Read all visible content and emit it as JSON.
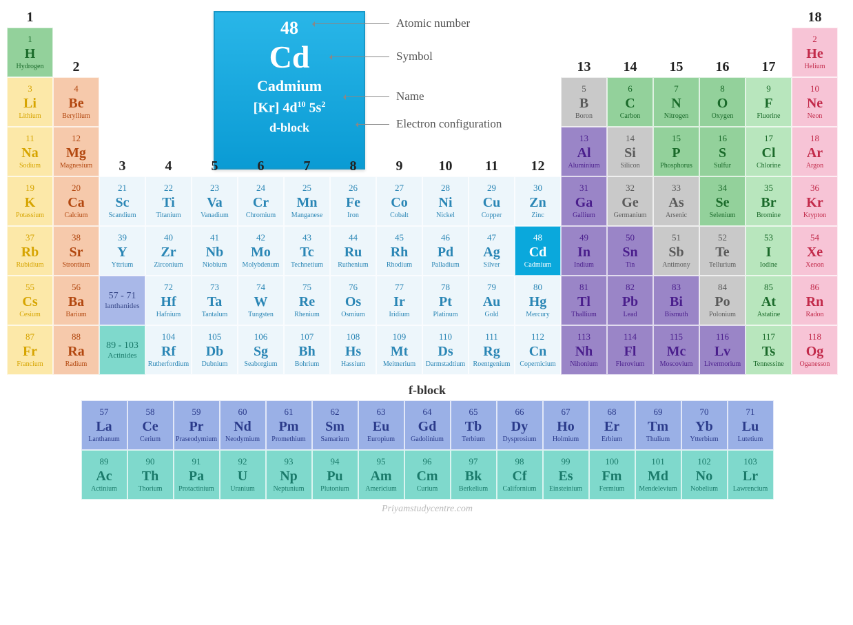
{
  "callout": {
    "number": "48",
    "symbol": "Cd",
    "name": "Cadmium",
    "econf_html": "[Kr] 4d<sup>10</sup> 5s<sup>2</sup>",
    "block": "d-block",
    "labels": {
      "atomic_number": "Atomic number",
      "symbol": "Symbol",
      "name": "Name",
      "electron_config": "Electron configuration"
    },
    "box_bg_gradient": [
      "#29b6e8",
      "#0a9bd4"
    ],
    "box_border": "#1897c7",
    "label_color": "#555555"
  },
  "cell_size": {
    "width": 67,
    "height": 72
  },
  "fblock_label": "f-block",
  "watermark": "Priyamstudycentre.com",
  "categories": {
    "alkali": {
      "bg": "#fce8a8",
      "fg": "#d6a400"
    },
    "alkaline": {
      "bg": "#f6c9ab",
      "fg": "#b2470f"
    },
    "transition": {
      "bg": "#edf6fb",
      "fg": "#2a86b5"
    },
    "posttrans": {
      "bg": "#9a85c7",
      "fg": "#4a1e8c"
    },
    "metalloid": {
      "bg": "#c9c9c9",
      "fg": "#5a5a5a"
    },
    "nonmetal": {
      "bg": "#93d19b",
      "fg": "#1a6a2a"
    },
    "halogen": {
      "bg": "#b8e6bd",
      "fg": "#1a6a2a"
    },
    "noble": {
      "bg": "#f7c4d6",
      "fg": "#c22a4a"
    },
    "lanth_range": {
      "bg": "#a9b8e8",
      "fg": "#3a4a8a"
    },
    "act_range": {
      "bg": "#7fd9cc",
      "fg": "#1a7a6a"
    },
    "lanth": {
      "bg": "#9ab0e6",
      "fg": "#2a3a8a"
    },
    "act": {
      "bg": "#7fd9cc",
      "fg": "#1a7a6a"
    },
    "highlight": {
      "bg": "#0aa8dc",
      "fg": "#ffffff"
    }
  },
  "group_numbers": [
    "1",
    "2",
    "3",
    "4",
    "5",
    "6",
    "7",
    "8",
    "9",
    "10",
    "11",
    "12",
    "13",
    "14",
    "15",
    "16",
    "17",
    "18"
  ],
  "elements": [
    {
      "z": 1,
      "s": "H",
      "n": "Hydrogen",
      "c": "nonmetal",
      "g": 1,
      "p": 1
    },
    {
      "z": 2,
      "s": "He",
      "n": "Helium",
      "c": "noble",
      "g": 18,
      "p": 1
    },
    {
      "z": 3,
      "s": "Li",
      "n": "Lithium",
      "c": "alkali",
      "g": 1,
      "p": 2
    },
    {
      "z": 4,
      "s": "Be",
      "n": "Beryllium",
      "c": "alkaline",
      "g": 2,
      "p": 2
    },
    {
      "z": 5,
      "s": "B",
      "n": "Boron",
      "c": "metalloid",
      "g": 13,
      "p": 2
    },
    {
      "z": 6,
      "s": "C",
      "n": "Carbon",
      "c": "nonmetal",
      "g": 14,
      "p": 2
    },
    {
      "z": 7,
      "s": "N",
      "n": "Nitrogen",
      "c": "nonmetal",
      "g": 15,
      "p": 2
    },
    {
      "z": 8,
      "s": "O",
      "n": "Oxygen",
      "c": "nonmetal",
      "g": 16,
      "p": 2
    },
    {
      "z": 9,
      "s": "F",
      "n": "Fluorine",
      "c": "halogen",
      "g": 17,
      "p": 2
    },
    {
      "z": 10,
      "s": "Ne",
      "n": "Neon",
      "c": "noble",
      "g": 18,
      "p": 2
    },
    {
      "z": 11,
      "s": "Na",
      "n": "Sodium",
      "c": "alkali",
      "g": 1,
      "p": 3
    },
    {
      "z": 12,
      "s": "Mg",
      "n": "Magnesium",
      "c": "alkaline",
      "g": 2,
      "p": 3
    },
    {
      "z": 13,
      "s": "Al",
      "n": "Aluminium",
      "c": "posttrans",
      "g": 13,
      "p": 3
    },
    {
      "z": 14,
      "s": "Si",
      "n": "Silicon",
      "c": "metalloid",
      "g": 14,
      "p": 3
    },
    {
      "z": 15,
      "s": "P",
      "n": "Phosphorus",
      "c": "nonmetal",
      "g": 15,
      "p": 3
    },
    {
      "z": 16,
      "s": "S",
      "n": "Sulfur",
      "c": "nonmetal",
      "g": 16,
      "p": 3
    },
    {
      "z": 17,
      "s": "Cl",
      "n": "Chlorine",
      "c": "halogen",
      "g": 17,
      "p": 3
    },
    {
      "z": 18,
      "s": "Ar",
      "n": "Argon",
      "c": "noble",
      "g": 18,
      "p": 3
    },
    {
      "z": 19,
      "s": "K",
      "n": "Potassium",
      "c": "alkali",
      "g": 1,
      "p": 4
    },
    {
      "z": 20,
      "s": "Ca",
      "n": "Calcium",
      "c": "alkaline",
      "g": 2,
      "p": 4
    },
    {
      "z": 21,
      "s": "Sc",
      "n": "Scandium",
      "c": "transition",
      "g": 3,
      "p": 4
    },
    {
      "z": 22,
      "s": "Ti",
      "n": "Titanium",
      "c": "transition",
      "g": 4,
      "p": 4
    },
    {
      "z": 23,
      "s": "Va",
      "n": "Vanadium",
      "c": "transition",
      "g": 5,
      "p": 4
    },
    {
      "z": 24,
      "s": "Cr",
      "n": "Chromium",
      "c": "transition",
      "g": 6,
      "p": 4
    },
    {
      "z": 25,
      "s": "Mn",
      "n": "Manganese",
      "c": "transition",
      "g": 7,
      "p": 4
    },
    {
      "z": 26,
      "s": "Fe",
      "n": "Iron",
      "c": "transition",
      "g": 8,
      "p": 4
    },
    {
      "z": 27,
      "s": "Co",
      "n": "Cobalt",
      "c": "transition",
      "g": 9,
      "p": 4
    },
    {
      "z": 28,
      "s": "Ni",
      "n": "Nickel",
      "c": "transition",
      "g": 10,
      "p": 4
    },
    {
      "z": 29,
      "s": "Cu",
      "n": "Copper",
      "c": "transition",
      "g": 11,
      "p": 4
    },
    {
      "z": 30,
      "s": "Zn",
      "n": "Zinc",
      "c": "transition",
      "g": 12,
      "p": 4
    },
    {
      "z": 31,
      "s": "Ga",
      "n": "Gallium",
      "c": "posttrans",
      "g": 13,
      "p": 4
    },
    {
      "z": 32,
      "s": "Ge",
      "n": "Germanium",
      "c": "metalloid",
      "g": 14,
      "p": 4
    },
    {
      "z": 33,
      "s": "As",
      "n": "Arsenic",
      "c": "metalloid",
      "g": 15,
      "p": 4
    },
    {
      "z": 34,
      "s": "Se",
      "n": "Selenium",
      "c": "nonmetal",
      "g": 16,
      "p": 4
    },
    {
      "z": 35,
      "s": "Br",
      "n": "Bromine",
      "c": "halogen",
      "g": 17,
      "p": 4
    },
    {
      "z": 36,
      "s": "Kr",
      "n": "Krypton",
      "c": "noble",
      "g": 18,
      "p": 4
    },
    {
      "z": 37,
      "s": "Rb",
      "n": "Rubidium",
      "c": "alkali",
      "g": 1,
      "p": 5
    },
    {
      "z": 38,
      "s": "Sr",
      "n": "Strontium",
      "c": "alkaline",
      "g": 2,
      "p": 5
    },
    {
      "z": 39,
      "s": "Y",
      "n": "Yttrium",
      "c": "transition",
      "g": 3,
      "p": 5
    },
    {
      "z": 40,
      "s": "Zr",
      "n": "Zirconium",
      "c": "transition",
      "g": 4,
      "p": 5
    },
    {
      "z": 41,
      "s": "Nb",
      "n": "Niobium",
      "c": "transition",
      "g": 5,
      "p": 5
    },
    {
      "z": 42,
      "s": "Mo",
      "n": "Molybdenum",
      "c": "transition",
      "g": 6,
      "p": 5
    },
    {
      "z": 43,
      "s": "Tc",
      "n": "Technetium",
      "c": "transition",
      "g": 7,
      "p": 5
    },
    {
      "z": 44,
      "s": "Ru",
      "n": "Ruthenium",
      "c": "transition",
      "g": 8,
      "p": 5
    },
    {
      "z": 45,
      "s": "Rh",
      "n": "Rhodium",
      "c": "transition",
      "g": 9,
      "p": 5
    },
    {
      "z": 46,
      "s": "Pd",
      "n": "Palladium",
      "c": "transition",
      "g": 10,
      "p": 5
    },
    {
      "z": 47,
      "s": "Ag",
      "n": "Silver",
      "c": "transition",
      "g": 11,
      "p": 5
    },
    {
      "z": 48,
      "s": "Cd",
      "n": "Cadmium",
      "c": "highlight",
      "g": 12,
      "p": 5
    },
    {
      "z": 49,
      "s": "In",
      "n": "Indium",
      "c": "posttrans",
      "g": 13,
      "p": 5
    },
    {
      "z": 50,
      "s": "Sn",
      "n": "Tin",
      "c": "posttrans",
      "g": 14,
      "p": 5
    },
    {
      "z": 51,
      "s": "Sb",
      "n": "Antimony",
      "c": "metalloid",
      "g": 15,
      "p": 5
    },
    {
      "z": 52,
      "s": "Te",
      "n": "Tellurium",
      "c": "metalloid",
      "g": 16,
      "p": 5
    },
    {
      "z": 53,
      "s": "I",
      "n": "Iodine",
      "c": "halogen",
      "g": 17,
      "p": 5
    },
    {
      "z": 54,
      "s": "Xe",
      "n": "Xenon",
      "c": "noble",
      "g": 18,
      "p": 5
    },
    {
      "z": 55,
      "s": "Cs",
      "n": "Cesium",
      "c": "alkali",
      "g": 1,
      "p": 6
    },
    {
      "z": 56,
      "s": "Ba",
      "n": "Barium",
      "c": "alkaline",
      "g": 2,
      "p": 6
    },
    {
      "z": "57 - 71",
      "s": "",
      "n": "lanthanides",
      "c": "lanth_range",
      "g": 3,
      "p": 6,
      "range": true
    },
    {
      "z": 72,
      "s": "Hf",
      "n": "Hafnium",
      "c": "transition",
      "g": 4,
      "p": 6
    },
    {
      "z": 73,
      "s": "Ta",
      "n": "Tantalum",
      "c": "transition",
      "g": 5,
      "p": 6
    },
    {
      "z": 74,
      "s": "W",
      "n": "Tungsten",
      "c": "transition",
      "g": 6,
      "p": 6
    },
    {
      "z": 75,
      "s": "Re",
      "n": "Rhenium",
      "c": "transition",
      "g": 7,
      "p": 6
    },
    {
      "z": 76,
      "s": "Os",
      "n": "Osmium",
      "c": "transition",
      "g": 8,
      "p": 6
    },
    {
      "z": 77,
      "s": "Ir",
      "n": "Iridium",
      "c": "transition",
      "g": 9,
      "p": 6
    },
    {
      "z": 78,
      "s": "Pt",
      "n": "Platinum",
      "c": "transition",
      "g": 10,
      "p": 6
    },
    {
      "z": 79,
      "s": "Au",
      "n": "Gold",
      "c": "transition",
      "g": 11,
      "p": 6
    },
    {
      "z": 80,
      "s": "Hg",
      "n": "Mercury",
      "c": "transition",
      "g": 12,
      "p": 6
    },
    {
      "z": 81,
      "s": "Tl",
      "n": "Thallium",
      "c": "posttrans",
      "g": 13,
      "p": 6
    },
    {
      "z": 82,
      "s": "Pb",
      "n": "Lead",
      "c": "posttrans",
      "g": 14,
      "p": 6
    },
    {
      "z": 83,
      "s": "Bi",
      "n": "Bismuth",
      "c": "posttrans",
      "g": 15,
      "p": 6
    },
    {
      "z": 84,
      "s": "Po",
      "n": "Polonium",
      "c": "metalloid",
      "g": 16,
      "p": 6
    },
    {
      "z": 85,
      "s": "At",
      "n": "Astatine",
      "c": "halogen",
      "g": 17,
      "p": 6
    },
    {
      "z": 86,
      "s": "Rn",
      "n": "Radon",
      "c": "noble",
      "g": 18,
      "p": 6
    },
    {
      "z": 87,
      "s": "Fr",
      "n": "Francium",
      "c": "alkali",
      "g": 1,
      "p": 7
    },
    {
      "z": 88,
      "s": "Ra",
      "n": "Radium",
      "c": "alkaline",
      "g": 2,
      "p": 7
    },
    {
      "z": "89 - 103",
      "s": "",
      "n": "Actinides",
      "c": "act_range",
      "g": 3,
      "p": 7,
      "range": true
    },
    {
      "z": 104,
      "s": "Rf",
      "n": "Rutherfordium",
      "c": "transition",
      "g": 4,
      "p": 7
    },
    {
      "z": 105,
      "s": "Db",
      "n": "Dubnium",
      "c": "transition",
      "g": 5,
      "p": 7
    },
    {
      "z": 106,
      "s": "Sg",
      "n": "Seaborgium",
      "c": "transition",
      "g": 6,
      "p": 7
    },
    {
      "z": 107,
      "s": "Bh",
      "n": "Bohrium",
      "c": "transition",
      "g": 7,
      "p": 7
    },
    {
      "z": 108,
      "s": "Hs",
      "n": "Hassium",
      "c": "transition",
      "g": 8,
      "p": 7
    },
    {
      "z": 109,
      "s": "Mt",
      "n": "Meitnerium",
      "c": "transition",
      "g": 9,
      "p": 7
    },
    {
      "z": 110,
      "s": "Ds",
      "n": "Darmstadtium",
      "c": "transition",
      "g": 10,
      "p": 7
    },
    {
      "z": 111,
      "s": "Rg",
      "n": "Roentgenium",
      "c": "transition",
      "g": 11,
      "p": 7
    },
    {
      "z": 112,
      "s": "Cn",
      "n": "Copernicium",
      "c": "transition",
      "g": 12,
      "p": 7
    },
    {
      "z": 113,
      "s": "Nh",
      "n": "Nihonium",
      "c": "posttrans",
      "g": 13,
      "p": 7
    },
    {
      "z": 114,
      "s": "Fl",
      "n": "Flerovium",
      "c": "posttrans",
      "g": 14,
      "p": 7
    },
    {
      "z": 115,
      "s": "Mc",
      "n": "Moscovium",
      "c": "posttrans",
      "g": 15,
      "p": 7
    },
    {
      "z": 116,
      "s": "Lv",
      "n": "Livermorium",
      "c": "posttrans",
      "g": 16,
      "p": 7
    },
    {
      "z": 117,
      "s": "Ts",
      "n": "Tennessine",
      "c": "halogen",
      "g": 17,
      "p": 7
    },
    {
      "z": 118,
      "s": "Og",
      "n": "Oganesson",
      "c": "noble",
      "g": 18,
      "p": 7
    }
  ],
  "lanthanides": [
    {
      "z": 57,
      "s": "La",
      "n": "Lanthanum",
      "c": "lanth"
    },
    {
      "z": 58,
      "s": "Ce",
      "n": "Cerium",
      "c": "lanth"
    },
    {
      "z": 59,
      "s": "Pr",
      "n": "Praseodymium",
      "c": "lanth"
    },
    {
      "z": 60,
      "s": "Nd",
      "n": "Neodymium",
      "c": "lanth"
    },
    {
      "z": 61,
      "s": "Pm",
      "n": "Promethium",
      "c": "lanth"
    },
    {
      "z": 62,
      "s": "Sm",
      "n": "Samarium",
      "c": "lanth"
    },
    {
      "z": 63,
      "s": "Eu",
      "n": "Europium",
      "c": "lanth"
    },
    {
      "z": 64,
      "s": "Gd",
      "n": "Gadolinium",
      "c": "lanth"
    },
    {
      "z": 65,
      "s": "Tb",
      "n": "Terbium",
      "c": "lanth"
    },
    {
      "z": 66,
      "s": "Dy",
      "n": "Dysprosium",
      "c": "lanth"
    },
    {
      "z": 67,
      "s": "Ho",
      "n": "Holmium",
      "c": "lanth"
    },
    {
      "z": 68,
      "s": "Er",
      "n": "Erbium",
      "c": "lanth"
    },
    {
      "z": 69,
      "s": "Tm",
      "n": "Thulium",
      "c": "lanth"
    },
    {
      "z": 70,
      "s": "Yb",
      "n": "Ytterbium",
      "c": "lanth"
    },
    {
      "z": 71,
      "s": "Lu",
      "n": "Lutetium",
      "c": "lanth"
    }
  ],
  "actinides": [
    {
      "z": 89,
      "s": "Ac",
      "n": "Actinium",
      "c": "act"
    },
    {
      "z": 90,
      "s": "Th",
      "n": "Thorium",
      "c": "act"
    },
    {
      "z": 91,
      "s": "Pa",
      "n": "Protactinium",
      "c": "act"
    },
    {
      "z": 92,
      "s": "U",
      "n": "Uranium",
      "c": "act"
    },
    {
      "z": 93,
      "s": "Np",
      "n": "Neptunium",
      "c": "act"
    },
    {
      "z": 94,
      "s": "Pu",
      "n": "Plutonium",
      "c": "act"
    },
    {
      "z": 95,
      "s": "Am",
      "n": "Americium",
      "c": "act"
    },
    {
      "z": 96,
      "s": "Cm",
      "n": "Curium",
      "c": "act"
    },
    {
      "z": 97,
      "s": "Bk",
      "n": "Berkelium",
      "c": "act"
    },
    {
      "z": 98,
      "s": "Cf",
      "n": "Californium",
      "c": "act"
    },
    {
      "z": 99,
      "s": "Es",
      "n": "Einsteinium",
      "c": "act"
    },
    {
      "z": 100,
      "s": "Fm",
      "n": "Fermium",
      "c": "act"
    },
    {
      "z": 101,
      "s": "Md",
      "n": "Mendelevium",
      "c": "act"
    },
    {
      "z": 102,
      "s": "No",
      "n": "Nobelium",
      "c": "act"
    },
    {
      "z": 103,
      "s": "Lr",
      "n": "Lawrencium",
      "c": "act"
    }
  ]
}
